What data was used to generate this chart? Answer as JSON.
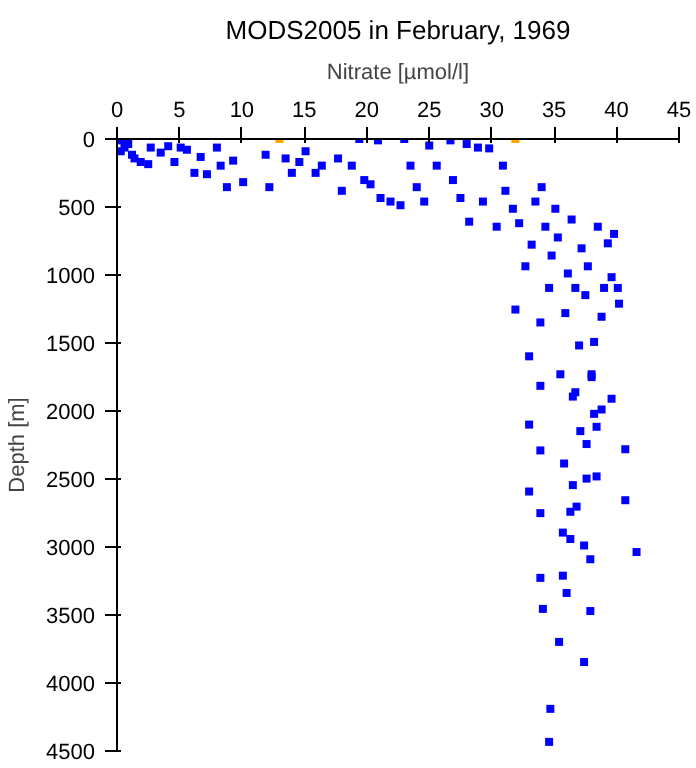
{
  "chart_data": {
    "type": "scatter",
    "title": "MODS2005 in February, 1969",
    "xlabel": "Nitrate [µmol/l]",
    "ylabel": "Depth [m]",
    "xlim": [
      0,
      45
    ],
    "xticks": [
      0,
      5,
      10,
      15,
      20,
      25,
      30,
      35,
      40,
      45
    ],
    "ylim": [
      4500,
      0
    ],
    "yticks": [
      0,
      500,
      1000,
      1500,
      2000,
      2500,
      3000,
      3500,
      4000,
      4500
    ],
    "grid": false,
    "marker": "square",
    "series": [
      {
        "color": "#0000ff",
        "x": [
          0.4,
          0.6,
          0.9,
          0.3,
          1.2,
          1.4,
          1.9,
          2.5,
          2.7,
          3.5,
          4.1,
          4.6,
          5.1,
          5.6,
          6.2,
          6.7,
          7.2,
          8.0,
          8.3,
          8.8,
          9.3,
          10.1,
          11.9,
          12.2,
          13.5,
          14.0,
          14.6,
          15.1,
          15.9,
          16.4,
          17.7,
          18.0,
          18.8,
          19.4,
          19.8,
          20.3,
          20.9,
          21.1,
          21.9,
          22.7,
          23.0,
          23.5,
          24.0,
          24.6,
          25.0,
          25.6,
          26.7,
          26.9,
          27.5,
          28.0,
          28.2,
          28.9,
          29.3,
          29.8,
          30.4,
          30.9,
          31.1,
          31.7,
          31.9,
          32.2,
          32.7,
          33.0,
          33.2,
          33.5,
          33.9,
          34.0,
          34.3,
          34.6,
          34.8,
          35.1,
          35.3,
          35.5,
          35.9,
          36.1,
          36.4,
          36.7,
          37.0,
          37.2,
          37.5,
          37.7,
          38.0,
          38.2,
          38.5,
          38.8,
          39.0,
          39.3,
          39.6,
          39.8,
          40.1,
          40.2,
          36.7,
          33.9,
          38.0,
          36.5,
          39.6,
          38.2,
          38.8,
          33.0,
          37.1,
          38.4,
          37.6,
          33.9,
          40.7,
          35.8,
          37.6,
          36.5,
          38.4,
          33.0,
          33.9,
          36.3,
          36.8,
          40.7,
          35.7,
          36.3,
          37.4,
          41.6,
          37.9,
          33.9,
          35.7,
          36.0,
          34.1,
          37.9,
          35.4,
          37.4,
          34.7,
          34.6
        ],
        "values": [
          10,
          63,
          37,
          90,
          116,
          143,
          169,
          185,
          63,
          100,
          53,
          169,
          63,
          79,
          249,
          132,
          259,
          63,
          196,
          354,
          159,
          317,
          116,
          354,
          143,
          249,
          169,
          90,
          249,
          196,
          143,
          381,
          196,
          0,
          302,
          333,
          10,
          434,
          460,
          487,
          0,
          196,
          354,
          460,
          48,
          196,
          10,
          302,
          434,
          37,
          608,
          63,
          460,
          69,
          645,
          196,
          381,
          513,
          1254,
          619,
          936,
          1598,
          777,
          460,
          1349,
          354,
          645,
          1095,
          857,
          513,
          724,
          1730,
          1280,
          989,
          592,
          1095,
          1518,
          804,
          1148,
          936,
          1730,
          1492,
          645,
          1307,
          1095,
          767,
          1016,
          698,
          1095,
          1211,
          1862,
          1815,
          1751,
          1894,
          1910,
          2021,
          1989,
          2100,
          2148,
          2116,
          2243,
          2290,
          2281,
          2386,
          2497,
          2545,
          2481,
          2592,
          2751,
          2741,
          2703,
          2656,
          2894,
          2941,
          2989,
          3037,
          3090,
          3227,
          3211,
          3338,
          3455,
          3471,
          3698,
          3846,
          4190,
          4433
        ]
      },
      {
        "color": "#ffa500",
        "x": [
          13.0,
          31.9
        ],
        "values": [
          0,
          0
        ]
      }
    ]
  }
}
